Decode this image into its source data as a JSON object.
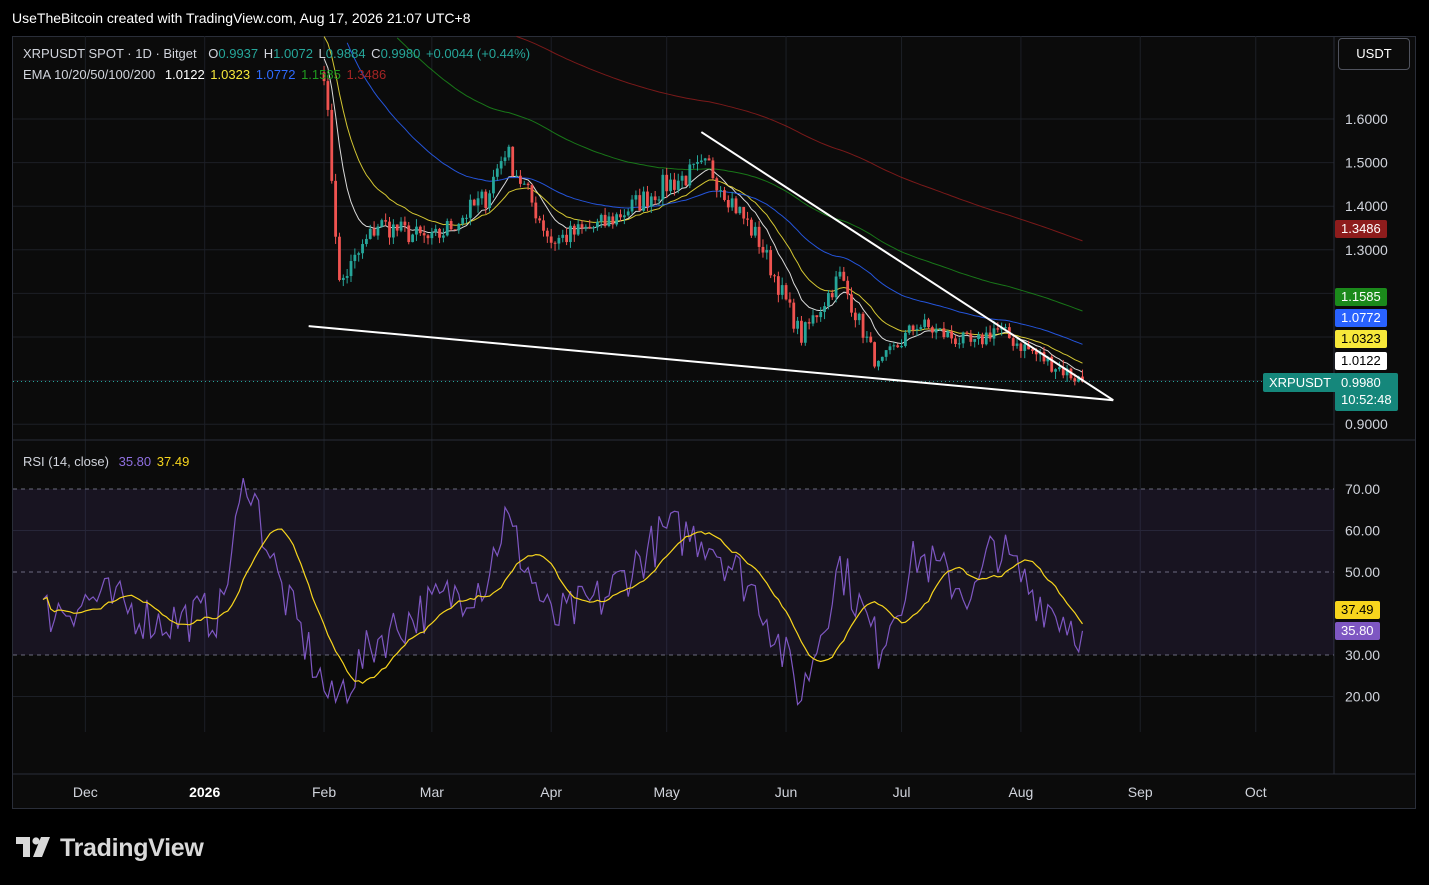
{
  "caption": "UseTheBitcoin created with TradingView.com, Aug 17, 2026 21:07 UTC+8",
  "unit_button": "USDT",
  "brand": "TradingView",
  "legend": {
    "symbol": "XRPUSDT SPOT · 1D · Bitget",
    "o_label": "O",
    "o_value": "0.9937",
    "h_label": "H",
    "h_value": "1.0072",
    "l_label": "L",
    "l_value": "0.9884",
    "c_label": "C",
    "c_value": "0.9980",
    "change": "+0.0044 (+0.44%)",
    "ema_label": "EMA 10/20/50/100/200",
    "ema10": "1.0122",
    "ema20": "1.0323",
    "ema50": "1.0772",
    "ema100": "1.1585",
    "ema200": "1.3486",
    "rsi_label": "RSI (14, close)",
    "rsi_value": "35.80",
    "rsi_ma_value": "37.49"
  },
  "price_tags": {
    "ema200": "1.3486",
    "ema100": "1.1585",
    "ema50": "1.0772",
    "ema20": "1.0323",
    "ema10": "1.0122",
    "symbol": "XRPUSDT",
    "last": "0.9980",
    "countdown": "10:52:48",
    "rsi_ma": "37.49",
    "rsi": "35.80"
  },
  "colors": {
    "up": "#26a69a",
    "down": "#ef5350",
    "ema10": "#ffffff",
    "ema20": "#f7e83a",
    "ema50": "#2962ff",
    "ema100": "#1b8a1b",
    "ema200": "#8e1c1c",
    "rsi": "#7e57c2",
    "rsi_ma": "#f7d51d"
  },
  "chart_data": {
    "type": "line",
    "title": "XRPUSDT SPOT · 1D · Bitget",
    "x_ticks": [
      "Dec",
      "2026",
      "Feb",
      "Mar",
      "Apr",
      "May",
      "Jun",
      "Jul",
      "Aug",
      "Sep",
      "Oct"
    ],
    "price_ticks": [
      "1.6000",
      "1.5000",
      "1.4000",
      "1.3000",
      "0.9000"
    ],
    "rsi_ticks": [
      "70.00",
      "60.00",
      "50.00",
      "30.00",
      "20.00"
    ],
    "price_range": [
      0.88,
      1.72
    ],
    "rsi_range": [
      15,
      77
    ],
    "series": [
      {
        "name": "XRPUSDT close",
        "x": [
          "2026-02-01",
          "2026-02-05",
          "2026-02-15",
          "2026-03-01",
          "2026-03-15",
          "2026-03-20",
          "2026-04-01",
          "2026-04-15",
          "2026-05-01",
          "2026-05-12",
          "2026-05-25",
          "2026-06-05",
          "2026-06-15",
          "2026-06-25",
          "2026-07-05",
          "2026-07-20",
          "2026-07-25",
          "2026-08-05",
          "2026-08-17"
        ],
        "values": [
          1.72,
          1.22,
          1.36,
          1.32,
          1.42,
          1.53,
          1.32,
          1.36,
          1.45,
          1.49,
          1.32,
          1.1,
          1.24,
          1.03,
          1.13,
          1.08,
          1.12,
          1.06,
          0.998
        ]
      },
      {
        "name": "RSI (14, close)",
        "x": [
          "2025-11-20",
          "2025-12-05",
          "2025-12-20",
          "2026-01-05",
          "2026-01-12",
          "2026-01-20",
          "2026-02-03",
          "2026-02-15",
          "2026-03-01",
          "2026-03-15",
          "2026-03-20",
          "2026-04-01",
          "2026-04-15",
          "2026-05-01",
          "2026-05-12",
          "2026-05-25",
          "2026-06-05",
          "2026-06-15",
          "2026-06-25",
          "2026-07-05",
          "2026-07-20",
          "2026-07-25",
          "2026-08-05",
          "2026-08-17"
        ],
        "values": [
          40,
          44,
          38,
          40,
          74,
          48,
          18,
          34,
          42,
          48,
          63,
          38,
          44,
          60,
          58,
          44,
          20,
          52,
          32,
          54,
          44,
          57,
          44,
          35.8
        ]
      }
    ],
    "trendlines": [
      {
        "name": "upper",
        "from": [
          "2026-05-10",
          1.57
        ],
        "to": [
          "2026-08-25",
          0.955
        ]
      },
      {
        "name": "lower",
        "from": [
          "2026-01-28",
          1.125
        ],
        "to": [
          "2026-08-25",
          0.955
        ]
      }
    ]
  }
}
